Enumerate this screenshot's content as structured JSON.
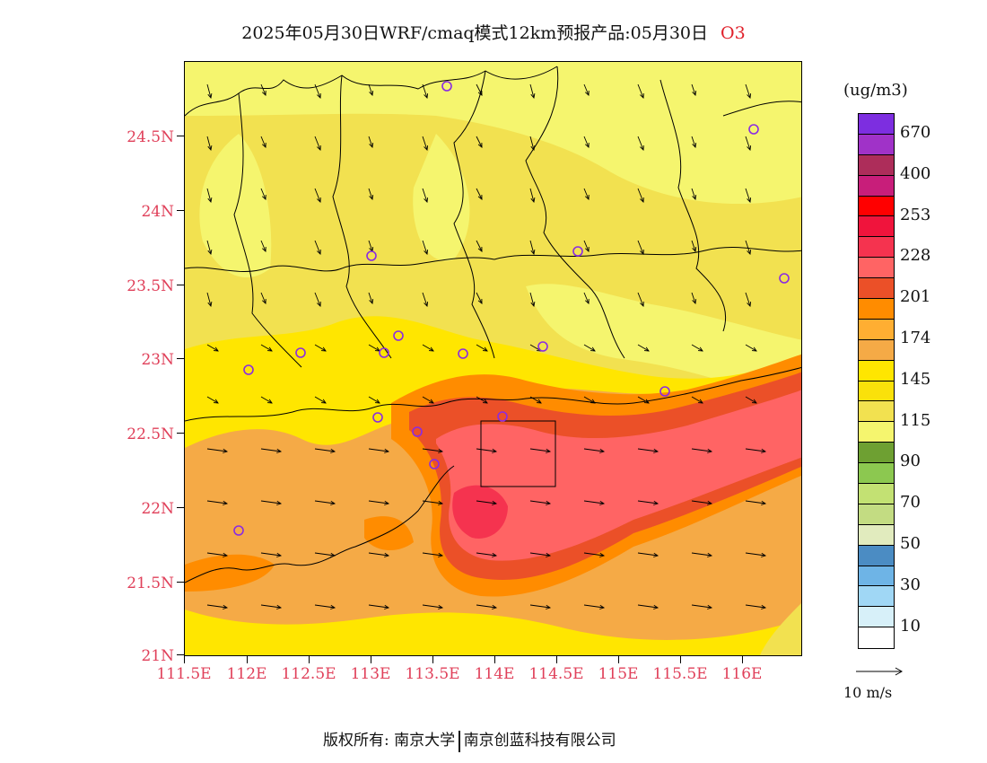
{
  "title": {
    "main": "2025年05月30日WRF/cmaq模式12km预报产品:05月30日",
    "pollutant": "O3"
  },
  "axes": {
    "lat_labels": [
      "24.5N",
      "24N",
      "23.5N",
      "23N",
      "22.5N",
      "22N",
      "21.5N",
      "21N"
    ],
    "lon_labels": [
      "111.5E",
      "112E",
      "112.5E",
      "113E",
      "113.5E",
      "114E",
      "114.5E",
      "115E",
      "115.5E",
      "116E"
    ]
  },
  "legend": {
    "unit": "(ug/m3)",
    "levels": [
      {
        "color": "#7d2ee0",
        "label": "670"
      },
      {
        "color": "#a032c8",
        "label": ""
      },
      {
        "color": "#ad2d5a",
        "label": "400"
      },
      {
        "color": "#c81e7a",
        "label": ""
      },
      {
        "color": "#ff0000",
        "label": "253"
      },
      {
        "color": "#f0143c",
        "label": ""
      },
      {
        "color": "#f5334f",
        "label": "228"
      },
      {
        "color": "#ff6464",
        "label": ""
      },
      {
        "color": "#eb5028",
        "label": "201"
      },
      {
        "color": "#ff8c00",
        "label": ""
      },
      {
        "color": "#ffae32",
        "label": "174"
      },
      {
        "color": "#f5aa46",
        "label": ""
      },
      {
        "color": "#ffe600",
        "label": "145"
      },
      {
        "color": "#fae10a",
        "label": ""
      },
      {
        "color": "#f2e150",
        "label": "115"
      },
      {
        "color": "#f5f56e",
        "label": ""
      },
      {
        "color": "#6ea032",
        "label": "90"
      },
      {
        "color": "#8cc850",
        "label": ""
      },
      {
        "color": "#c3e173",
        "label": "70"
      },
      {
        "color": "#c3dc82",
        "label": ""
      },
      {
        "color": "#e1ebbe",
        "label": "50"
      },
      {
        "color": "#4b8cc3",
        "label": ""
      },
      {
        "color": "#6eb4e6",
        "label": "30"
      },
      {
        "color": "#a0d7f5",
        "label": ""
      },
      {
        "color": "#d7f0f9",
        "label": "10"
      },
      {
        "color": "#ffffff",
        "label": ""
      }
    ]
  },
  "wind_reference": "10 m/s",
  "footer": {
    "left": "版权所有: 南京大学",
    "right": "南京创蓝科技有限公司"
  },
  "stations": 17
}
